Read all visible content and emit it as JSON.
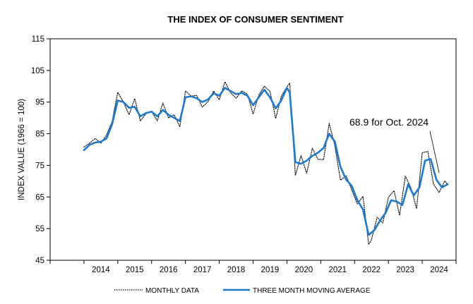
{
  "chart_data": {
    "type": "line",
    "title": "THE INDEX OF CONSUMER SENTIMENT",
    "ylabel": "INDEX VALUE (1966 = 100)",
    "xlabel": "",
    "ylim": [
      45,
      115
    ],
    "xlim": [
      2013.0,
      2025.0
    ],
    "yticks": [
      45,
      55,
      65,
      75,
      85,
      95,
      105,
      115
    ],
    "xticks": [
      "2014",
      "2015",
      "2016",
      "2017",
      "2018",
      "2019",
      "2020",
      "2021",
      "2022",
      "2023",
      "2024"
    ],
    "grid": false,
    "legend": "bottom",
    "annotation": {
      "text": "68.9 for Oct. 2024",
      "x": 2024.75,
      "y": 68.9
    },
    "series": [
      {
        "name": "MONTHLY DATA",
        "style": "dotted",
        "color": "#000000",
        "x": [
          2014.0,
          2014.167,
          2014.333,
          2014.5,
          2014.667,
          2014.833,
          2015.0,
          2015.167,
          2015.333,
          2015.5,
          2015.667,
          2015.833,
          2016.0,
          2016.167,
          2016.333,
          2016.5,
          2016.667,
          2016.833,
          2017.0,
          2017.167,
          2017.333,
          2017.5,
          2017.667,
          2017.833,
          2018.0,
          2018.167,
          2018.333,
          2018.5,
          2018.667,
          2018.833,
          2019.0,
          2019.167,
          2019.333,
          2019.5,
          2019.667,
          2019.833,
          2020.0,
          2020.083,
          2020.25,
          2020.417,
          2020.583,
          2020.75,
          2020.917,
          2021.083,
          2021.25,
          2021.417,
          2021.583,
          2021.75,
          2021.917,
          2022.083,
          2022.25,
          2022.417,
          2022.5,
          2022.667,
          2022.833,
          2023.0,
          2023.167,
          2023.333,
          2023.5,
          2023.667,
          2023.833,
          2024.0,
          2024.167,
          2024.333,
          2024.5,
          2024.667,
          2024.75
        ],
        "values": [
          80.8,
          82.0,
          83.5,
          82.0,
          84.6,
          88.8,
          98.1,
          95.0,
          91.0,
          96.1,
          89.0,
          91.3,
          92.0,
          89.0,
          94.7,
          90.0,
          91.0,
          87.2,
          98.5,
          96.9,
          97.1,
          93.4,
          95.1,
          98.5,
          95.7,
          101.4,
          98.0,
          96.2,
          98.6,
          97.5,
          91.2,
          97.2,
          100.0,
          98.4,
          89.8,
          96.8,
          99.8,
          101.0,
          71.8,
          78.1,
          72.5,
          80.4,
          76.9,
          76.8,
          88.3,
          81.2,
          70.3,
          71.7,
          67.2,
          62.8,
          65.2,
          50.0,
          51.5,
          58.6,
          56.8,
          64.9,
          67.0,
          59.2,
          71.6,
          67.9,
          61.3,
          79.0,
          79.4,
          69.1,
          66.4,
          70.1,
          68.9
        ]
      },
      {
        "name": "THREE MONTH MOVING AVERAGE",
        "style": "solid",
        "color": "#1f78c8",
        "x": [
          2014.0,
          2014.167,
          2014.333,
          2014.5,
          2014.667,
          2014.833,
          2015.0,
          2015.167,
          2015.333,
          2015.5,
          2015.667,
          2015.833,
          2016.0,
          2016.167,
          2016.333,
          2016.5,
          2016.667,
          2016.833,
          2017.0,
          2017.167,
          2017.333,
          2017.5,
          2017.667,
          2017.833,
          2018.0,
          2018.167,
          2018.333,
          2018.5,
          2018.667,
          2018.833,
          2019.0,
          2019.167,
          2019.333,
          2019.5,
          2019.667,
          2019.833,
          2020.0,
          2020.083,
          2020.25,
          2020.417,
          2020.583,
          2020.75,
          2020.917,
          2021.083,
          2021.25,
          2021.417,
          2021.583,
          2021.75,
          2021.917,
          2022.083,
          2022.25,
          2022.417,
          2022.583,
          2022.75,
          2022.917,
          2023.083,
          2023.25,
          2023.417,
          2023.583,
          2023.75,
          2023.917,
          2024.083,
          2024.25,
          2024.417,
          2024.583,
          2024.75
        ],
        "values": [
          79.8,
          81.5,
          82.2,
          82.5,
          83.5,
          88.0,
          95.5,
          95.0,
          93.2,
          93.5,
          90.5,
          91.5,
          92.0,
          90.5,
          92.5,
          91.0,
          90.0,
          89.0,
          96.5,
          96.8,
          96.2,
          95.0,
          95.8,
          97.8,
          97.0,
          99.5,
          98.5,
          97.5,
          97.9,
          97.0,
          94.0,
          96.5,
          98.9,
          96.5,
          93.0,
          95.5,
          99.5,
          98.0,
          76.0,
          75.5,
          76.5,
          78.0,
          79.0,
          80.5,
          85.0,
          82.5,
          74.5,
          70.5,
          68.5,
          64.0,
          61.0,
          53.0,
          54.5,
          57.5,
          60.0,
          64.0,
          63.5,
          62.5,
          69.0,
          65.5,
          68.0,
          76.5,
          77.0,
          70.5,
          68.0,
          69.0
        ]
      }
    ]
  }
}
